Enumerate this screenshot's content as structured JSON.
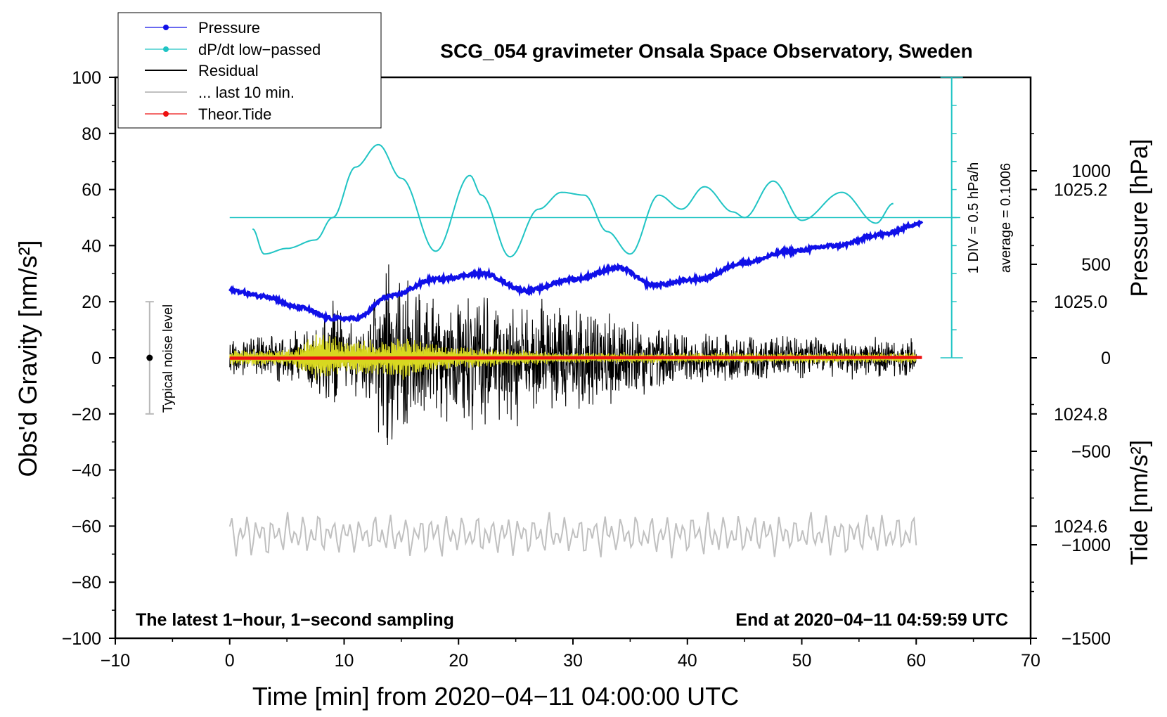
{
  "chart_data": {
    "type": "line",
    "title": "SCG_054 gravimeter Onsala Space Observatory, Sweden",
    "xlabel": "Time [min] from 2020−04−11 04:00:00 UTC",
    "ylabel_left": "Obs'd Gravity [nm/s²]",
    "ylabel_right_pressure": "Pressure [hPa]",
    "ylabel_right_tide": "Tide [nm/s²]",
    "xlim": [
      -10,
      70
    ],
    "ylim": [
      -100,
      100
    ],
    "x_ticks": [
      "−10",
      "0",
      "10",
      "20",
      "30",
      "40",
      "50",
      "60",
      "70"
    ],
    "y_ticks": [
      "100",
      "80",
      "60",
      "40",
      "20",
      "0",
      "−20",
      "−40",
      "−60",
      "−80",
      "−100"
    ],
    "pressure_axis": {
      "ticks": [
        "1025.2",
        "1025.0",
        "1024.8",
        "1024.6"
      ],
      "tick_values": [
        1025.2,
        1025.0,
        1024.8,
        1024.6
      ],
      "range_hPa": [
        1024.4,
        1025.4
      ]
    },
    "tide_axis": {
      "ticks": [
        "1000",
        "500",
        "0",
        "−500",
        "−1000",
        "−1500"
      ],
      "tick_values": [
        1000,
        500,
        0,
        -500,
        -1000,
        -1500
      ],
      "range": [
        -1500,
        1500
      ]
    },
    "legend": {
      "placement": "top-left",
      "entries": [
        {
          "label": "Pressure",
          "color": "#1010e8"
        },
        {
          "label": "dP/dt low−passed",
          "color": "#20c4c4"
        },
        {
          "label": "Residual",
          "color": "#000000"
        },
        {
          "label": "... last 10 min.",
          "color": "#c0c0c0"
        },
        {
          "label": "Theor.Tide",
          "color": "#ee1010"
        }
      ]
    },
    "annotations": {
      "noise_label": "Typical noise level",
      "noise_range": [
        -20,
        20
      ],
      "div_label": "1 DIV = 0.5 hPa/h",
      "average_label": "average = 0.1006",
      "footer_left": "The latest 1−hour, 1−second sampling",
      "footer_right": "End at 2020−04−11 04:59:59 UTC"
    },
    "series": [
      {
        "name": "Pressure",
        "color": "#1010e8",
        "unit": "hPa",
        "x": [
          0,
          3,
          6,
          9,
          11,
          14,
          18,
          22,
          26,
          30,
          34,
          37,
          41,
          45,
          49,
          53,
          57,
          60.5
        ],
        "values": [
          1025.02,
          1025.01,
          1024.99,
          1024.97,
          1024.97,
          1025.01,
          1025.04,
          1025.05,
          1025.02,
          1025.04,
          1025.06,
          1025.03,
          1025.04,
          1025.07,
          1025.09,
          1025.1,
          1025.12,
          1025.14
        ]
      },
      {
        "name": "dP/dt low−passed",
        "color": "#20c4c4",
        "unit": "hPa/h",
        "zero_line_gravity": 50,
        "scale_gravity_per_hPa_h": 100,
        "x": [
          2,
          3,
          5,
          7.5,
          9,
          11,
          13,
          15,
          18,
          21,
          22,
          24.5,
          27,
          29,
          31,
          33,
          35,
          37.5,
          39.5,
          41.5,
          44,
          45,
          47.5,
          50,
          53.5,
          56.5,
          58
        ],
        "values": [
          -0.04,
          -0.13,
          -0.11,
          -0.08,
          0.0,
          0.18,
          0.26,
          0.14,
          -0.12,
          0.15,
          0.08,
          -0.14,
          0.03,
          0.09,
          0.08,
          -0.05,
          -0.13,
          0.08,
          0.03,
          0.11,
          0.02,
          0.0,
          0.13,
          -0.01,
          0.09,
          -0.02,
          0.05
        ]
      },
      {
        "name": "Residual",
        "color": "#000000",
        "unit": "nm/s²",
        "x": [
          0,
          5,
          8,
          9,
          10,
          11.5,
          13,
          13.7,
          14.5,
          16,
          18,
          20,
          21.5,
          23,
          24.5,
          26,
          28,
          30,
          33,
          36,
          40,
          45,
          50,
          55,
          60
        ],
        "amplitude": [
          7,
          9,
          18,
          24,
          16,
          14,
          30,
          42,
          30,
          28,
          26,
          22,
          28,
          26,
          28,
          24,
          22,
          20,
          18,
          14,
          10,
          10,
          8,
          8,
          8
        ]
      },
      {
        "name": "Residual (filtered)",
        "color": "#d8d820",
        "unit": "nm/s²",
        "x": [
          0,
          5,
          8,
          9,
          10,
          11.5,
          13,
          15,
          16.5,
          18,
          20,
          25,
          30,
          40,
          50,
          60
        ],
        "amplitude": [
          3,
          3,
          10,
          8,
          6,
          8,
          6,
          8,
          7,
          5,
          4,
          3,
          2,
          2,
          2,
          2
        ]
      },
      {
        "name": "... last 10 min.",
        "color": "#c0c0c0",
        "unit": "nm/s²",
        "center": -63,
        "amplitude": 7,
        "x_range": [
          0,
          60
        ]
      },
      {
        "name": "Theor.Tide",
        "color": "#ee1010",
        "unit": "nm/s²",
        "x": [
          0,
          15,
          30,
          45,
          60.5
        ],
        "values": [
          -2,
          -1,
          0,
          1,
          2
        ]
      }
    ]
  }
}
